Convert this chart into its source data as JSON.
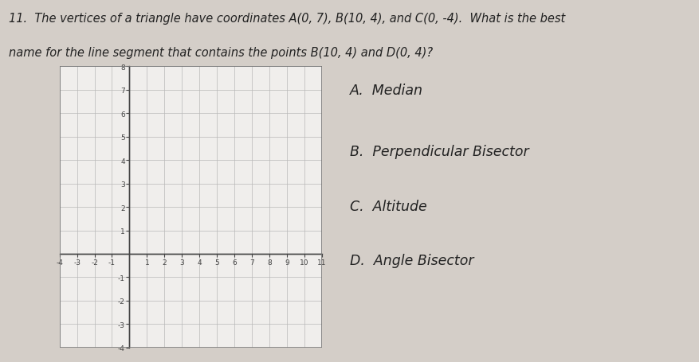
{
  "background_color": "#d4cec8",
  "question_text_line1": "11.  The vertices of a triangle have coordinates A(0, 7), B(10, 4), and C(0, -4).  What is the best",
  "question_text_line2": "name for the line segment that contains the points B(10, 4) and D(0, 4)?",
  "answer_A": "A.  Median",
  "answer_B": "B.  Perpendicular Bisector",
  "answer_C": "C.  Altitude",
  "answer_D": "D.  Angle Bisector",
  "grid_xlim": [
    -4,
    11
  ],
  "grid_ylim": [
    -4,
    8
  ],
  "grid_xticks": [
    -4,
    -3,
    -2,
    -1,
    0,
    1,
    2,
    3,
    4,
    5,
    6,
    7,
    8,
    9,
    10,
    11
  ],
  "grid_yticks": [
    -4,
    -3,
    -2,
    -1,
    0,
    1,
    2,
    3,
    4,
    5,
    6,
    7,
    8
  ],
  "grid_color": "#b8b8b8",
  "axis_color": "#444444",
  "text_color": "#222222",
  "font_size_question": 10.5,
  "font_size_answer": 12.5,
  "grid_bg": "#f0eeec"
}
